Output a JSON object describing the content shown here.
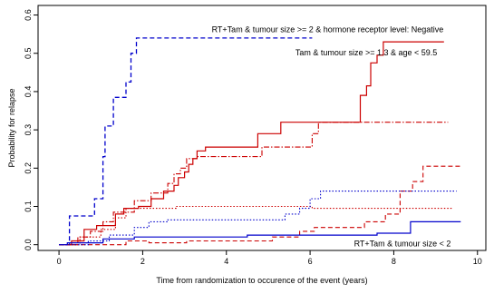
{
  "chart_data": {
    "type": "line",
    "title": "",
    "xlabel": "Time from randomization to occurence of the event (years)",
    "ylabel": "Probability for relapse",
    "xlim": [
      -0.5,
      10.2
    ],
    "ylim": [
      -0.015,
      0.625
    ],
    "xticks": [
      0,
      2,
      4,
      6,
      8,
      10
    ],
    "yticks": [
      0.0,
      0.1,
      0.2,
      0.3,
      0.4,
      0.5,
      0.6
    ],
    "xtick_labels": [
      "0",
      "2",
      "4",
      "6",
      "8",
      "10"
    ],
    "ytick_labels": [
      "0.0",
      "0.1",
      "0.2",
      "0.3",
      "0.4",
      "0.5",
      "0.6"
    ],
    "grid": false,
    "annotations": [
      {
        "text": "RT+Tam & tumour size >= 2 & hormone receptor level: Negative",
        "x": 3.65,
        "y": 0.555
      },
      {
        "text": "Tam & tumour size >= 1.3 & age < 59.5",
        "x": 5.65,
        "y": 0.495
      },
      {
        "text": "RT+Tam & tumour size < 2",
        "x": 7.05,
        "y": -0.004
      }
    ],
    "series": [
      {
        "color": "#0000cc",
        "style": "dash",
        "width": 1.3,
        "points": [
          [
            0,
            0
          ],
          [
            0.25,
            0
          ],
          [
            0.25,
            0.075
          ],
          [
            0.85,
            0.075
          ],
          [
            0.85,
            0.12
          ],
          [
            1.05,
            0.12
          ],
          [
            1.05,
            0.23
          ],
          [
            1.1,
            0.23
          ],
          [
            1.1,
            0.31
          ],
          [
            1.3,
            0.31
          ],
          [
            1.3,
            0.385
          ],
          [
            1.6,
            0.385
          ],
          [
            1.6,
            0.425
          ],
          [
            1.72,
            0.425
          ],
          [
            1.72,
            0.5
          ],
          [
            1.85,
            0.5
          ],
          [
            1.85,
            0.54
          ],
          [
            6.05,
            0.54
          ]
        ]
      },
      {
        "color": "#cc0000",
        "style": "solid",
        "width": 1.2,
        "points": [
          [
            0,
            0
          ],
          [
            0.3,
            0
          ],
          [
            0.3,
            0.01
          ],
          [
            0.6,
            0.01
          ],
          [
            0.6,
            0.04
          ],
          [
            0.9,
            0.04
          ],
          [
            0.9,
            0.05
          ],
          [
            1.35,
            0.05
          ],
          [
            1.35,
            0.08
          ],
          [
            1.55,
            0.08
          ],
          [
            1.55,
            0.095
          ],
          [
            1.9,
            0.095
          ],
          [
            1.9,
            0.1
          ],
          [
            2.2,
            0.1
          ],
          [
            2.2,
            0.12
          ],
          [
            2.5,
            0.12
          ],
          [
            2.5,
            0.14
          ],
          [
            2.75,
            0.14
          ],
          [
            2.75,
            0.155
          ],
          [
            2.85,
            0.155
          ],
          [
            2.85,
            0.175
          ],
          [
            3.0,
            0.175
          ],
          [
            3.0,
            0.19
          ],
          [
            3.1,
            0.19
          ],
          [
            3.1,
            0.21
          ],
          [
            3.2,
            0.21
          ],
          [
            3.2,
            0.225
          ],
          [
            3.3,
            0.225
          ],
          [
            3.3,
            0.245
          ],
          [
            3.5,
            0.245
          ],
          [
            3.5,
            0.255
          ],
          [
            4.75,
            0.255
          ],
          [
            4.75,
            0.29
          ],
          [
            5.3,
            0.29
          ],
          [
            5.3,
            0.32
          ],
          [
            7.2,
            0.32
          ],
          [
            7.2,
            0.39
          ],
          [
            7.35,
            0.39
          ],
          [
            7.35,
            0.415
          ],
          [
            7.45,
            0.415
          ],
          [
            7.45,
            0.475
          ],
          [
            7.6,
            0.475
          ],
          [
            7.6,
            0.495
          ],
          [
            7.75,
            0.495
          ],
          [
            7.75,
            0.53
          ],
          [
            9.2,
            0.53
          ]
        ]
      },
      {
        "color": "#cc0000",
        "style": "dashdot",
        "width": 1.1,
        "points": [
          [
            0,
            0
          ],
          [
            0.45,
            0
          ],
          [
            0.45,
            0.02
          ],
          [
            0.75,
            0.02
          ],
          [
            0.75,
            0.035
          ],
          [
            1.05,
            0.035
          ],
          [
            1.05,
            0.06
          ],
          [
            1.3,
            0.06
          ],
          [
            1.3,
            0.085
          ],
          [
            1.8,
            0.085
          ],
          [
            1.8,
            0.115
          ],
          [
            2.2,
            0.115
          ],
          [
            2.2,
            0.135
          ],
          [
            2.6,
            0.135
          ],
          [
            2.6,
            0.16
          ],
          [
            2.75,
            0.16
          ],
          [
            2.75,
            0.185
          ],
          [
            2.9,
            0.185
          ],
          [
            2.9,
            0.2
          ],
          [
            3.05,
            0.2
          ],
          [
            3.05,
            0.225
          ],
          [
            3.3,
            0.225
          ],
          [
            3.3,
            0.23
          ],
          [
            4.85,
            0.23
          ],
          [
            4.85,
            0.255
          ],
          [
            6.05,
            0.255
          ],
          [
            6.05,
            0.29
          ],
          [
            6.2,
            0.29
          ],
          [
            6.2,
            0.32
          ],
          [
            9.3,
            0.32
          ]
        ]
      },
      {
        "color": "#cc0000",
        "style": "dot",
        "width": 1.1,
        "points": [
          [
            0,
            0
          ],
          [
            0.5,
            0
          ],
          [
            0.5,
            0.02
          ],
          [
            1.0,
            0.02
          ],
          [
            1.0,
            0.04
          ],
          [
            1.35,
            0.04
          ],
          [
            1.35,
            0.07
          ],
          [
            1.6,
            0.07
          ],
          [
            1.6,
            0.095
          ],
          [
            2.8,
            0.095
          ],
          [
            2.8,
            0.1
          ],
          [
            6.05,
            0.1
          ],
          [
            6.05,
            0.095
          ],
          [
            9.4,
            0.095
          ]
        ]
      },
      {
        "color": "#cc0000",
        "style": "dash",
        "width": 1.1,
        "points": [
          [
            0,
            0
          ],
          [
            1.6,
            0
          ],
          [
            1.6,
            0.01
          ],
          [
            2.15,
            0.01
          ],
          [
            2.15,
            0.005
          ],
          [
            3.05,
            0.005
          ],
          [
            3.05,
            0.01
          ],
          [
            5.1,
            0.01
          ],
          [
            5.1,
            0.02
          ],
          [
            5.75,
            0.02
          ],
          [
            5.75,
            0.035
          ],
          [
            6.1,
            0.035
          ],
          [
            6.1,
            0.045
          ],
          [
            7.3,
            0.045
          ],
          [
            7.3,
            0.06
          ],
          [
            7.8,
            0.06
          ],
          [
            7.8,
            0.08
          ],
          [
            8.15,
            0.08
          ],
          [
            8.15,
            0.14
          ],
          [
            8.45,
            0.14
          ],
          [
            8.45,
            0.165
          ],
          [
            8.7,
            0.165
          ],
          [
            8.7,
            0.205
          ],
          [
            9.6,
            0.205
          ]
        ]
      },
      {
        "color": "#0000cc",
        "style": "dot",
        "width": 1.1,
        "points": [
          [
            0,
            0
          ],
          [
            0.7,
            0
          ],
          [
            0.7,
            0.01
          ],
          [
            1.2,
            0.01
          ],
          [
            1.2,
            0.025
          ],
          [
            1.8,
            0.025
          ],
          [
            1.8,
            0.045
          ],
          [
            2.15,
            0.045
          ],
          [
            2.15,
            0.06
          ],
          [
            2.6,
            0.06
          ],
          [
            2.6,
            0.065
          ],
          [
            5.4,
            0.065
          ],
          [
            5.4,
            0.08
          ],
          [
            5.75,
            0.08
          ],
          [
            5.75,
            0.095
          ],
          [
            6.0,
            0.095
          ],
          [
            6.0,
            0.12
          ],
          [
            6.25,
            0.12
          ],
          [
            6.25,
            0.14
          ],
          [
            9.5,
            0.14
          ]
        ]
      },
      {
        "color": "#0000cc",
        "style": "solid",
        "width": 1.2,
        "points": [
          [
            0,
            0
          ],
          [
            0.2,
            0
          ],
          [
            0.2,
            0.005
          ],
          [
            1.05,
            0.005
          ],
          [
            1.05,
            0.015
          ],
          [
            1.8,
            0.015
          ],
          [
            1.8,
            0.02
          ],
          [
            4.5,
            0.02
          ],
          [
            4.5,
            0.025
          ],
          [
            7.6,
            0.025
          ],
          [
            7.6,
            0.03
          ],
          [
            8.4,
            0.03
          ],
          [
            8.4,
            0.06
          ],
          [
            9.6,
            0.06
          ]
        ]
      }
    ]
  }
}
